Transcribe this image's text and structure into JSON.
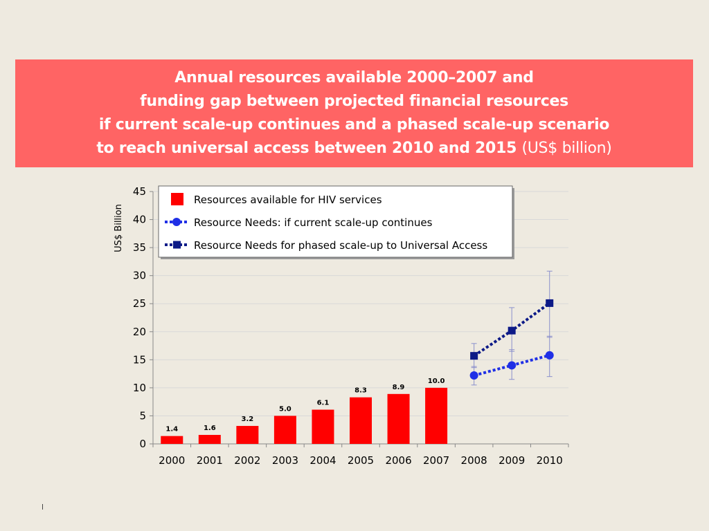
{
  "title": {
    "line1": "Annual resources available 2000–2007 and",
    "line2": "funding gap between projected financial resources",
    "line3": "if current scale-up continues and a phased scale-up scenario",
    "line4": "to reach universal access between 2010 and 2015",
    "unit": "(US$ billion)"
  },
  "colors": {
    "title_bg": "#FF6464",
    "bar": "#FF0000",
    "series_current": "#1F2FE6",
    "series_phased": "#0D1A87",
    "error_bar": "#8A8FCC",
    "grid": "#D8D8D8"
  },
  "chart_data": {
    "type": "bar",
    "categories": [
      "2000",
      "2001",
      "2002",
      "2003",
      "2004",
      "2005",
      "2006",
      "2007",
      "2008",
      "2009",
      "2010"
    ],
    "ylabel": "US$ Billion",
    "ylim": [
      0,
      45
    ],
    "yticks": [
      "0",
      "5",
      "10",
      "15",
      "20",
      "25",
      "30",
      "35",
      "40",
      "45"
    ],
    "series": [
      {
        "name": "Resources available for HIV services",
        "kind": "bar",
        "values": [
          1.4,
          1.6,
          3.2,
          5.0,
          6.1,
          8.3,
          8.9,
          10.0,
          null,
          null,
          null
        ],
        "labels": [
          "1.4",
          "1.6",
          "3.2",
          "5.0",
          "6.1",
          "8.3",
          "8.9",
          "10.0",
          "",
          "",
          ""
        ]
      },
      {
        "name": "Resource Needs: if current scale-up continues",
        "kind": "line-circle",
        "values": [
          null,
          null,
          null,
          null,
          null,
          null,
          null,
          null,
          12.2,
          14.0,
          15.8
        ],
        "error_low": [
          null,
          null,
          null,
          null,
          null,
          null,
          null,
          null,
          10.5,
          11.5,
          12.0
        ],
        "error_high": [
          null,
          null,
          null,
          null,
          null,
          null,
          null,
          null,
          13.8,
          16.8,
          19.2
        ]
      },
      {
        "name": "Resource Needs for phased scale-up to Universal Access",
        "kind": "line-square",
        "values": [
          null,
          null,
          null,
          null,
          null,
          null,
          null,
          null,
          15.7,
          20.2,
          25.1
        ],
        "error_low": [
          null,
          null,
          null,
          null,
          null,
          null,
          null,
          null,
          13.6,
          16.5,
          19.0
        ],
        "error_high": [
          null,
          null,
          null,
          null,
          null,
          null,
          null,
          null,
          17.9,
          24.3,
          30.8
        ]
      }
    ],
    "legend": {
      "position": "top-left",
      "items": [
        "Resources available for HIV services",
        "Resource Needs: if current scale-up continues",
        "Resource Needs for phased scale-up to Universal Access"
      ]
    }
  }
}
